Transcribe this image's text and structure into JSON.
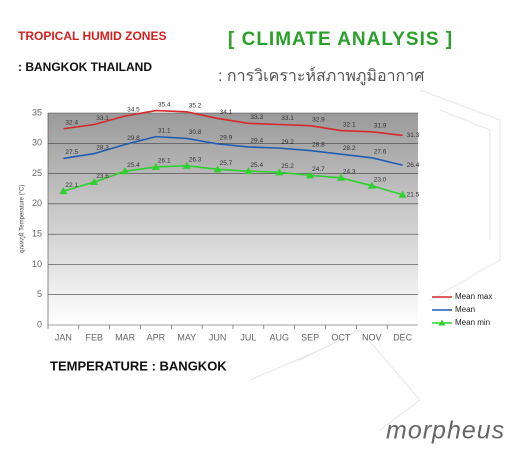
{
  "header": {
    "title": "TROPICAL HUMID ZONES",
    "location": ": BANGKOK THAILAND",
    "heading": "[ CLIMATE ANALYSIS ]",
    "subheading": ": การวิเคราะห์สภาพภูมิอากาศ"
  },
  "caption": "TEMPERATURE : BANGKOK",
  "logo": "morpheus",
  "chart_data": {
    "type": "line",
    "y_label": "อุณหภูมิ Temperature (°C)",
    "categories": [
      "JAN",
      "FEB",
      "MAR",
      "APR",
      "MAY",
      "JUN",
      "JUL",
      "AUG",
      "SEP",
      "OCT",
      "NOV",
      "DEC"
    ],
    "series": [
      {
        "name": "Mean max",
        "color": "#d42a2a",
        "values": [
          32.4,
          33.1,
          34.5,
          35.4,
          35.2,
          34.1,
          33.3,
          33.1,
          32.9,
          32.1,
          31.9,
          31.3
        ]
      },
      {
        "name": "Mean",
        "color": "#1f5fb0",
        "values": [
          27.5,
          28.3,
          29.8,
          31.1,
          30.8,
          29.9,
          29.4,
          29.2,
          28.8,
          28.2,
          27.6,
          26.4
        ]
      },
      {
        "name": "Mean min",
        "color": "#2fd02f",
        "marker": "triangle",
        "values": [
          22.1,
          23.6,
          25.4,
          26.1,
          26.3,
          25.7,
          25.4,
          25.2,
          24.7,
          24.3,
          23,
          21.5
        ],
        "value_labels": [
          "22.1",
          "23.6",
          "25.4",
          "26.1",
          "26.3",
          "25.7",
          "25.4",
          "25.2",
          "24.7",
          "24.3",
          "23.0",
          "21.5"
        ]
      }
    ],
    "ylim": [
      0,
      35
    ],
    "yticks": [
      0,
      5,
      10,
      15,
      20,
      25,
      30,
      35
    ],
    "grid": true
  }
}
